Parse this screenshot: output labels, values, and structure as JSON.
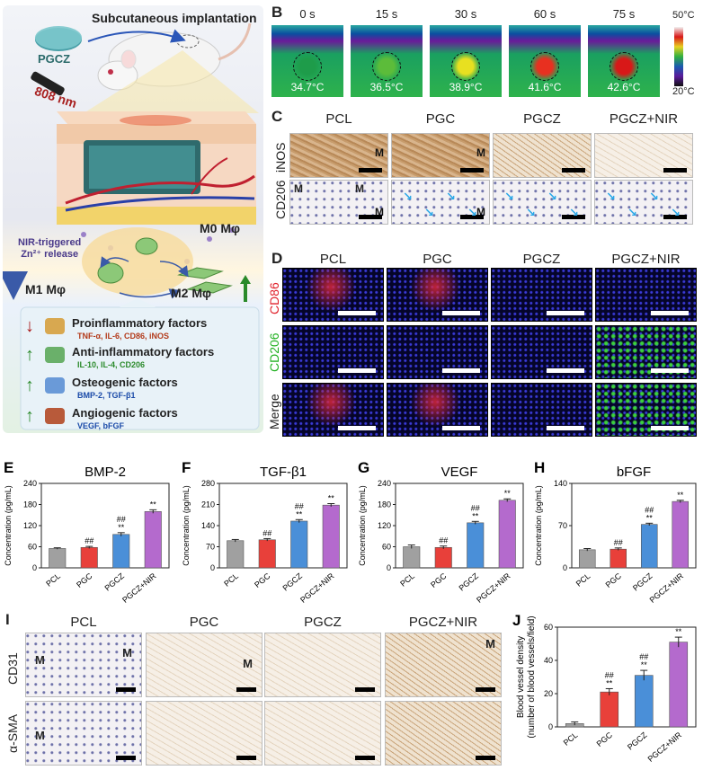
{
  "panels": {
    "A": "A",
    "B": "B",
    "C": "C",
    "D": "D",
    "E": "E",
    "F": "F",
    "G": "G",
    "H": "H",
    "I": "I",
    "J": "J"
  },
  "panelA": {
    "title": "Subcutaneous implantation",
    "pgcz": "PGCZ",
    "laser": "808 nm",
    "trigger_line1": "NIR-triggered",
    "trigger_line2": "Zn²⁺ release",
    "m0": "M0 Mφ",
    "m1": "M1 Mφ",
    "m2": "M2 Mφ",
    "factors": [
      {
        "title": "Proinflammatory factors",
        "sub": "TNF-α, IL-6, CD86, iNOS",
        "arrow": "down",
        "sub_color": "#b33a1a"
      },
      {
        "title": "Anti-inflammatory factors",
        "sub": "IL-10, IL-4, CD206",
        "arrow": "up",
        "sub_color": "#2a8a2a"
      },
      {
        "title": "Osteogenic factors",
        "sub": "BMP-2, TGF-β1",
        "arrow": "up",
        "sub_color": "#1a4aa8"
      },
      {
        "title": "Angiogenic factors",
        "sub": "VEGF, bFGF",
        "arrow": "up",
        "sub_color": "#1a4aa8"
      }
    ]
  },
  "panelB": {
    "frames": [
      {
        "time": "0 s",
        "temp": "34.7°C",
        "spot": "#1e9c4a"
      },
      {
        "time": "15 s",
        "temp": "36.5°C",
        "spot": "#5cbc3a"
      },
      {
        "time": "30 s",
        "temp": "38.9°C",
        "spot": "#e8e020"
      },
      {
        "time": "60 s",
        "temp": "41.6°C",
        "spot": "#e83020"
      },
      {
        "time": "75 s",
        "temp": "42.6°C",
        "spot": "#d81818"
      }
    ],
    "scale_max": "50°C",
    "scale_min": "20°C"
  },
  "groups": [
    "PCL",
    "PGC",
    "PGCZ",
    "PGCZ+NIR"
  ],
  "panelC": {
    "rows": [
      "iNOS",
      "CD206"
    ],
    "marker": "M"
  },
  "panelD": {
    "rows": [
      "CD86",
      "CD206",
      "Merge"
    ],
    "row_colors": [
      "#e0202a",
      "#20b020",
      "#222222"
    ]
  },
  "panelI": {
    "rows": [
      "CD31",
      "α-SMA"
    ],
    "marker": "M"
  },
  "bar_colors": [
    "#a0a0a0",
    "#e8403a",
    "#4a8fd8",
    "#b46acd"
  ],
  "chart_data": [
    {
      "type": "bar",
      "id": "E",
      "title": "BMP-2",
      "ylabel": "Concentration (pg/mL)",
      "categories": [
        "PCL",
        "PGC",
        "PGCZ",
        "PGCZ+NIR"
      ],
      "values": [
        55,
        58,
        95,
        160
      ],
      "errors": [
        2,
        3,
        5,
        5
      ],
      "annotations": [
        "",
        "##",
        "##\n**",
        "**"
      ],
      "ylim": [
        0,
        240
      ],
      "yticks": [
        "0",
        "60",
        "120",
        "180",
        "240"
      ]
    },
    {
      "type": "bar",
      "id": "F",
      "title": "TGF-β1",
      "ylabel": "Concentration (pg/mL)",
      "categories": [
        "PCL",
        "PGC",
        "PGCZ",
        "PGCZ+NIR"
      ],
      "values": [
        90,
        93,
        155,
        208
      ],
      "errors": [
        4,
        4,
        5,
        5
      ],
      "annotations": [
        "",
        "##",
        "##\n**",
        "**"
      ],
      "ylim": [
        0,
        280
      ],
      "yticks": [
        "0",
        "70",
        "140",
        "210",
        "280"
      ]
    },
    {
      "type": "bar",
      "id": "G",
      "title": "VEGF",
      "ylabel": "Concentration (pg/mL)",
      "categories": [
        "PCL",
        "PGC",
        "PGCZ",
        "PGCZ+NIR"
      ],
      "values": [
        60,
        58,
        128,
        192
      ],
      "errors": [
        5,
        4,
        4,
        4
      ],
      "annotations": [
        "",
        "##",
        "##\n**",
        "**"
      ],
      "ylim": [
        0,
        240
      ],
      "yticks": [
        "0",
        "60",
        "120",
        "180",
        "240"
      ]
    },
    {
      "type": "bar",
      "id": "H",
      "title": "bFGF",
      "ylabel": "Concentration (pg/mL)",
      "categories": [
        "PCL",
        "PGC",
        "PGCZ",
        "PGCZ+NIR"
      ],
      "values": [
        30,
        31,
        72,
        110
      ],
      "errors": [
        2,
        2,
        2,
        2
      ],
      "annotations": [
        "",
        "##",
        "##\n**",
        "**"
      ],
      "ylim": [
        0,
        140
      ],
      "yticks": [
        "0",
        "70",
        "140"
      ]
    },
    {
      "type": "bar",
      "id": "J",
      "title": "",
      "ylabel": "Blood vessel density",
      "ylabel2": "(number of blood vessels/field)",
      "categories": [
        "PCL",
        "PGC",
        "PGCZ",
        "PGCZ+NIR"
      ],
      "values": [
        2,
        21,
        31,
        51
      ],
      "errors": [
        1,
        2,
        3,
        3
      ],
      "annotations": [
        "",
        "##\n**",
        "##\n**",
        "**"
      ],
      "ylim": [
        0,
        60
      ],
      "yticks": [
        "0",
        "20",
        "40",
        "60"
      ]
    }
  ]
}
